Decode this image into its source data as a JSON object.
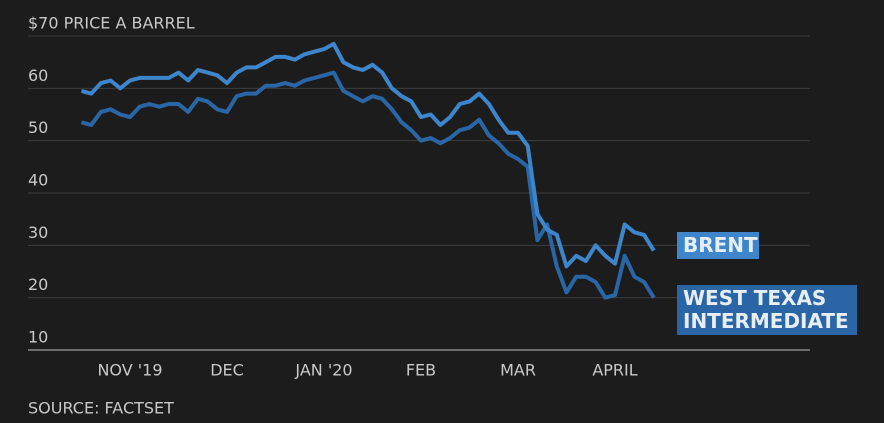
{
  "chart_data": {
    "type": "line",
    "categories": [
      null,
      null,
      null,
      null,
      null,
      "NOV '19",
      null,
      null,
      null,
      null,
      null,
      null,
      null,
      null,
      null,
      "DEC",
      null,
      null,
      null,
      null,
      null,
      null,
      null,
      null,
      null,
      "JAN '20",
      null,
      null,
      null,
      null,
      null,
      null,
      null,
      null,
      null,
      "FEB",
      null,
      null,
      null,
      null,
      null,
      null,
      null,
      null,
      null,
      "MAR",
      null,
      null,
      null,
      null,
      null,
      null,
      null,
      null,
      null,
      "APRIL",
      null,
      null,
      null,
      null
    ],
    "series": [
      {
        "name": "BRENT",
        "color": "#3d86cc",
        "values": [
          59.5,
          59,
          61,
          61.5,
          60,
          61.5,
          62,
          62,
          62,
          62,
          63,
          61.5,
          63.5,
          63,
          62.5,
          61,
          63,
          64,
          64,
          65,
          66,
          66,
          65.5,
          66.5,
          67,
          67.5,
          68.5,
          65,
          64,
          63.5,
          64.5,
          63,
          60,
          58.5,
          57.5,
          54.5,
          55,
          53,
          54.5,
          57,
          57.5,
          59,
          57,
          54,
          51.5,
          51.5,
          49,
          36,
          33,
          32,
          26,
          28,
          27,
          30,
          28,
          26.5,
          34,
          32.5,
          32,
          29
        ]
      },
      {
        "name": "WEST TEXAS INTERMEDIATE",
        "color": "#2a66a6",
        "values": [
          53.5,
          53,
          55.5,
          56,
          55,
          54.5,
          56.5,
          57,
          56.5,
          57,
          57,
          55.5,
          58,
          57.5,
          56,
          55.5,
          58.5,
          59,
          59,
          60.5,
          60.5,
          61,
          60.5,
          61.5,
          62,
          62.5,
          63,
          59.5,
          58.5,
          57.5,
          58.5,
          58,
          56,
          53.5,
          52,
          50,
          50.5,
          49.5,
          50.5,
          52,
          52.5,
          54,
          51,
          49.5,
          47.5,
          46.5,
          45,
          31,
          34,
          26,
          21,
          24,
          24,
          23,
          20,
          20.5,
          28,
          24,
          23,
          20
        ]
      }
    ],
    "ylim": [
      10,
      70
    ],
    "yticks": [
      10,
      20,
      30,
      40,
      50,
      60,
      {
        "value": 70,
        "label": "$70 PRICE A BARREL"
      }
    ],
    "grid": true,
    "source": "SOURCE: FACTSET"
  }
}
